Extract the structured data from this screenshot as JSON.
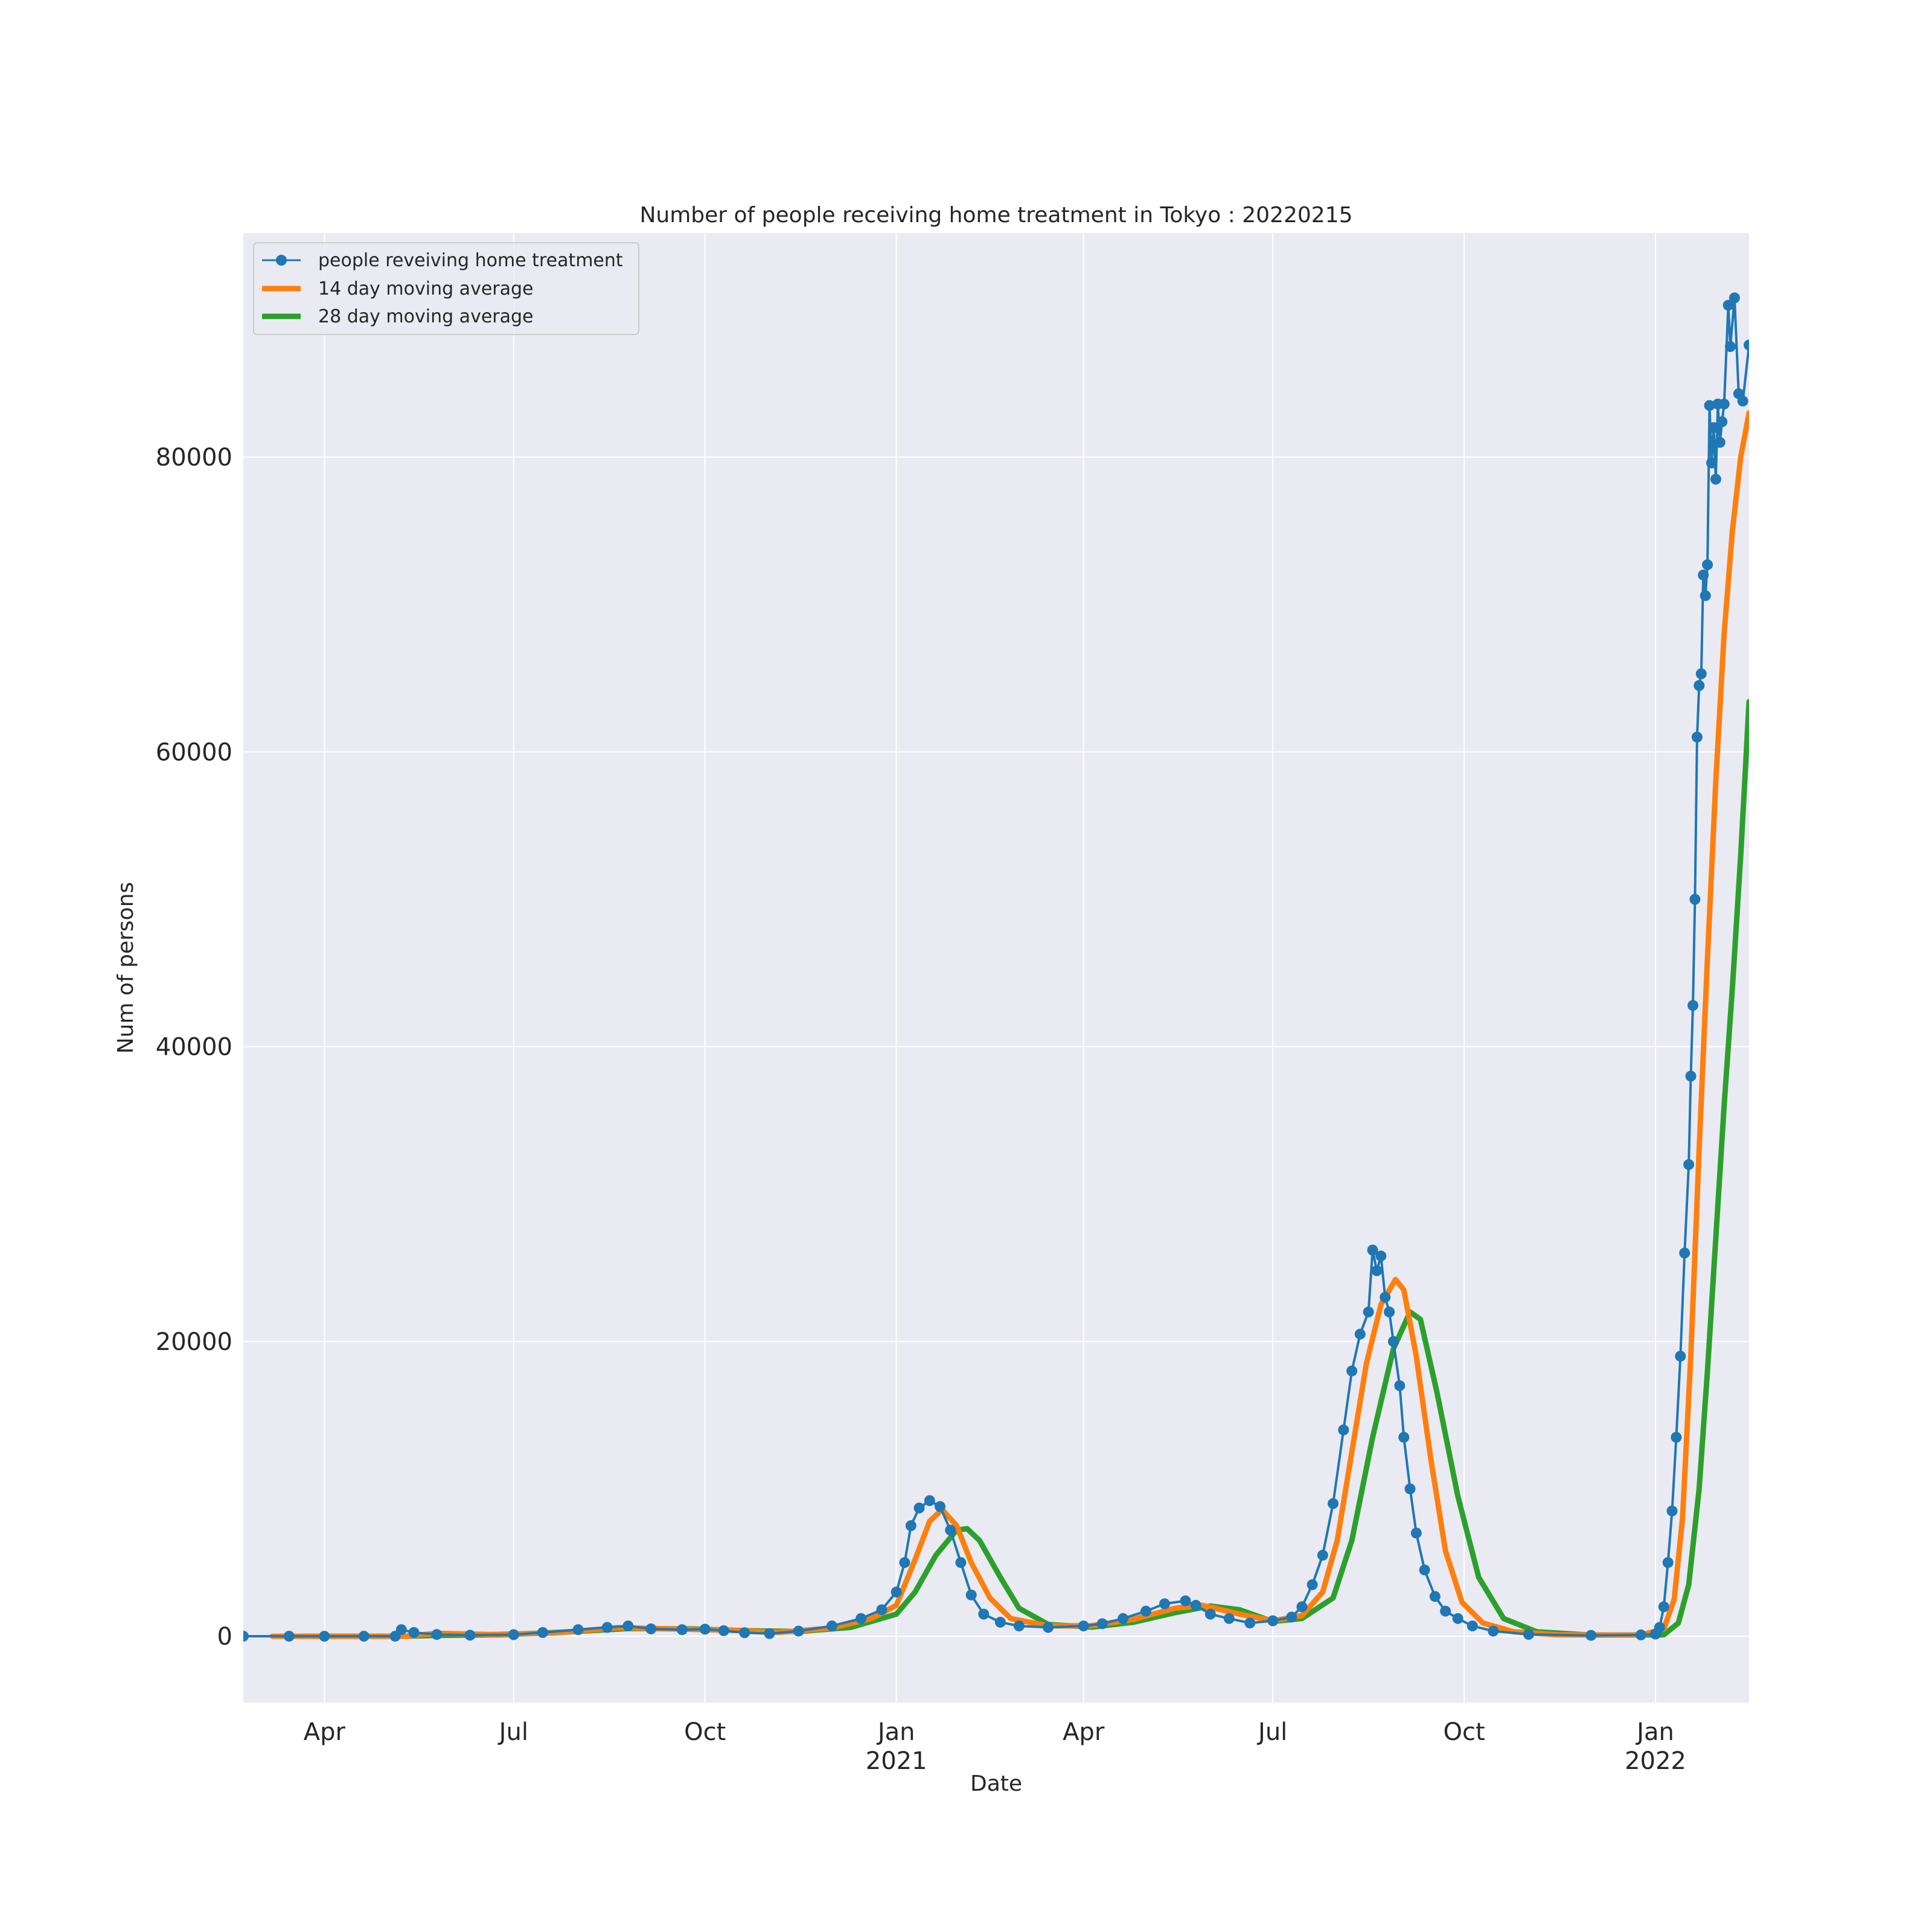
{
  "chart_data": {
    "type": "line",
    "title": "Number of people receiving home treatment in Tokyo : 20220215",
    "xlabel": "Date",
    "ylabel": "Num of persons",
    "x_type": "date",
    "xlim": [
      "2020-02-22",
      "2022-02-15"
    ],
    "ylim": [
      -4500,
      95200
    ],
    "grid": true,
    "legend_position": "top-left",
    "x_ticks": [
      {
        "date": "2020-04-01",
        "label": "Apr",
        "sublabel": ""
      },
      {
        "date": "2020-07-01",
        "label": "Jul",
        "sublabel": ""
      },
      {
        "date": "2020-10-01",
        "label": "Oct",
        "sublabel": ""
      },
      {
        "date": "2021-01-01",
        "label": "Jan",
        "sublabel": "2021"
      },
      {
        "date": "2021-04-01",
        "label": "Apr",
        "sublabel": ""
      },
      {
        "date": "2021-07-01",
        "label": "Jul",
        "sublabel": ""
      },
      {
        "date": "2021-10-01",
        "label": "Oct",
        "sublabel": ""
      },
      {
        "date": "2022-01-01",
        "label": "Jan",
        "sublabel": "2022"
      }
    ],
    "y_ticks": [
      0,
      20000,
      40000,
      60000,
      80000
    ],
    "y_tick_labels": [
      "0",
      "20000",
      "40000",
      "60000",
      "80000"
    ],
    "series": [
      {
        "name": "people reveiving home treatment",
        "color": "#1f77b4",
        "style": "line-markers",
        "points": [
          [
            "2020-02-22",
            0
          ],
          [
            "2020-03-15",
            0
          ],
          [
            "2020-04-01",
            0
          ],
          [
            "2020-04-20",
            0
          ],
          [
            "2020-05-05",
            0
          ],
          [
            "2020-05-08",
            450
          ],
          [
            "2020-05-14",
            250
          ],
          [
            "2020-05-25",
            120
          ],
          [
            "2020-06-10",
            70
          ],
          [
            "2020-07-01",
            110
          ],
          [
            "2020-07-15",
            250
          ],
          [
            "2020-08-01",
            450
          ],
          [
            "2020-08-15",
            600
          ],
          [
            "2020-08-25",
            700
          ],
          [
            "2020-09-05",
            500
          ],
          [
            "2020-09-20",
            450
          ],
          [
            "2020-10-01",
            480
          ],
          [
            "2020-10-10",
            380
          ],
          [
            "2020-10-20",
            240
          ],
          [
            "2020-11-01",
            180
          ],
          [
            "2020-11-15",
            350
          ],
          [
            "2020-12-01",
            700
          ],
          [
            "2020-12-15",
            1200
          ],
          [
            "2020-12-25",
            1800
          ],
          [
            "2021-01-01",
            3000
          ],
          [
            "2021-01-05",
            5000
          ],
          [
            "2021-01-08",
            7500
          ],
          [
            "2021-01-12",
            8700
          ],
          [
            "2021-01-17",
            9200
          ],
          [
            "2021-01-22",
            8800
          ],
          [
            "2021-01-27",
            7200
          ],
          [
            "2021-02-01",
            5000
          ],
          [
            "2021-02-06",
            2800
          ],
          [
            "2021-02-12",
            1500
          ],
          [
            "2021-02-20",
            950
          ],
          [
            "2021-03-01",
            700
          ],
          [
            "2021-03-15",
            600
          ],
          [
            "2021-04-01",
            700
          ],
          [
            "2021-04-10",
            850
          ],
          [
            "2021-04-20",
            1200
          ],
          [
            "2021-05-01",
            1700
          ],
          [
            "2021-05-10",
            2200
          ],
          [
            "2021-05-20",
            2400
          ],
          [
            "2021-05-25",
            2100
          ],
          [
            "2021-06-01",
            1500
          ],
          [
            "2021-06-10",
            1200
          ],
          [
            "2021-06-20",
            900
          ],
          [
            "2021-07-01",
            1050
          ],
          [
            "2021-07-10",
            1300
          ],
          [
            "2021-07-15",
            2000
          ],
          [
            "2021-07-20",
            3500
          ],
          [
            "2021-07-25",
            5500
          ],
          [
            "2021-07-30",
            9000
          ],
          [
            "2021-08-04",
            14000
          ],
          [
            "2021-08-08",
            18000
          ],
          [
            "2021-08-12",
            20500
          ],
          [
            "2021-08-16",
            22000
          ],
          [
            "2021-08-18",
            26200
          ],
          [
            "2021-08-20",
            24800
          ],
          [
            "2021-08-22",
            25800
          ],
          [
            "2021-08-24",
            23000
          ],
          [
            "2021-08-26",
            22000
          ],
          [
            "2021-08-28",
            20000
          ],
          [
            "2021-08-31",
            17000
          ],
          [
            "2021-09-02",
            13500
          ],
          [
            "2021-09-05",
            10000
          ],
          [
            "2021-09-08",
            7000
          ],
          [
            "2021-09-12",
            4500
          ],
          [
            "2021-09-17",
            2700
          ],
          [
            "2021-09-22",
            1700
          ],
          [
            "2021-09-28",
            1200
          ],
          [
            "2021-10-05",
            700
          ],
          [
            "2021-10-15",
            350
          ],
          [
            "2021-11-01",
            130
          ],
          [
            "2021-12-01",
            60
          ],
          [
            "2021-12-25",
            90
          ],
          [
            "2022-01-01",
            150
          ],
          [
            "2022-01-03",
            600
          ],
          [
            "2022-01-05",
            2000
          ],
          [
            "2022-01-07",
            5000
          ],
          [
            "2022-01-09",
            8500
          ],
          [
            "2022-01-11",
            13500
          ],
          [
            "2022-01-13",
            19000
          ],
          [
            "2022-01-15",
            26000
          ],
          [
            "2022-01-17",
            32000
          ],
          [
            "2022-01-18",
            38000
          ],
          [
            "2022-01-19",
            42800
          ],
          [
            "2022-01-20",
            50000
          ],
          [
            "2022-01-21",
            61000
          ],
          [
            "2022-01-22",
            64500
          ],
          [
            "2022-01-23",
            65300
          ],
          [
            "2022-01-24",
            72000
          ],
          [
            "2022-01-25",
            70600
          ],
          [
            "2022-01-26",
            72700
          ],
          [
            "2022-01-27",
            83500
          ],
          [
            "2022-01-28",
            79600
          ],
          [
            "2022-01-29",
            82000
          ],
          [
            "2022-01-30",
            78500
          ],
          [
            "2022-01-31",
            83600
          ],
          [
            "2022-02-01",
            81000
          ],
          [
            "2022-02-02",
            82400
          ],
          [
            "2022-02-03",
            83600
          ],
          [
            "2022-02-05",
            90300
          ],
          [
            "2022-02-06",
            87500
          ],
          [
            "2022-02-08",
            90800
          ],
          [
            "2022-02-10",
            84300
          ],
          [
            "2022-02-12",
            83800
          ],
          [
            "2022-02-15",
            87600
          ]
        ]
      },
      {
        "name": "14 day moving average",
        "color": "#ff7f0e",
        "style": "line",
        "points": [
          [
            "2020-03-07",
            0
          ],
          [
            "2020-05-10",
            0
          ],
          [
            "2020-05-25",
            200
          ],
          [
            "2020-06-20",
            120
          ],
          [
            "2020-07-20",
            220
          ],
          [
            "2020-08-20",
            580
          ],
          [
            "2020-09-25",
            470
          ],
          [
            "2020-10-15",
            400
          ],
          [
            "2020-11-05",
            260
          ],
          [
            "2020-12-01",
            560
          ],
          [
            "2020-12-20",
            1200
          ],
          [
            "2021-01-01",
            2100
          ],
          [
            "2021-01-10",
            5200
          ],
          [
            "2021-01-17",
            7800
          ],
          [
            "2021-01-23",
            8600
          ],
          [
            "2021-01-30",
            7500
          ],
          [
            "2021-02-06",
            5000
          ],
          [
            "2021-02-15",
            2600
          ],
          [
            "2021-02-25",
            1200
          ],
          [
            "2021-03-15",
            700
          ],
          [
            "2021-04-05",
            720
          ],
          [
            "2021-04-25",
            1150
          ],
          [
            "2021-05-15",
            1900
          ],
          [
            "2021-05-28",
            2100
          ],
          [
            "2021-06-15",
            1500
          ],
          [
            "2021-07-01",
            1050
          ],
          [
            "2021-07-15",
            1400
          ],
          [
            "2021-07-25",
            3000
          ],
          [
            "2021-08-01",
            6500
          ],
          [
            "2021-08-08",
            12500
          ],
          [
            "2021-08-15",
            18500
          ],
          [
            "2021-08-22",
            22500
          ],
          [
            "2021-08-29",
            24200
          ],
          [
            "2021-09-02",
            23500
          ],
          [
            "2021-09-08",
            19000
          ],
          [
            "2021-09-15",
            12000
          ],
          [
            "2021-09-22",
            5800
          ],
          [
            "2021-09-30",
            2300
          ],
          [
            "2021-10-10",
            900
          ],
          [
            "2021-10-25",
            300
          ],
          [
            "2021-11-15",
            100
          ],
          [
            "2021-12-25",
            80
          ],
          [
            "2022-01-05",
            500
          ],
          [
            "2022-01-10",
            2500
          ],
          [
            "2022-01-14",
            8000
          ],
          [
            "2022-01-18",
            19000
          ],
          [
            "2022-01-22",
            33000
          ],
          [
            "2022-01-26",
            46000
          ],
          [
            "2022-01-30",
            58000
          ],
          [
            "2022-02-03",
            68000
          ],
          [
            "2022-02-07",
            75000
          ],
          [
            "2022-02-11",
            80000
          ],
          [
            "2022-02-15",
            83000
          ]
        ]
      },
      {
        "name": "28 day moving average",
        "color": "#2ca02c",
        "style": "line",
        "points": [
          [
            "2020-03-21",
            0
          ],
          [
            "2020-05-10",
            0
          ],
          [
            "2020-05-25",
            60
          ],
          [
            "2020-06-25",
            100
          ],
          [
            "2020-07-25",
            280
          ],
          [
            "2020-08-25",
            520
          ],
          [
            "2020-09-25",
            500
          ],
          [
            "2020-10-20",
            380
          ],
          [
            "2020-11-15",
            320
          ],
          [
            "2020-12-10",
            600
          ],
          [
            "2021-01-01",
            1500
          ],
          [
            "2021-01-10",
            3000
          ],
          [
            "2021-01-20",
            5500
          ],
          [
            "2021-01-30",
            7200
          ],
          [
            "2021-02-04",
            7300
          ],
          [
            "2021-02-10",
            6500
          ],
          [
            "2021-02-20",
            4000
          ],
          [
            "2021-03-01",
            1900
          ],
          [
            "2021-03-15",
            800
          ],
          [
            "2021-04-05",
            620
          ],
          [
            "2021-04-25",
            950
          ],
          [
            "2021-05-15",
            1600
          ],
          [
            "2021-06-01",
            2050
          ],
          [
            "2021-06-15",
            1800
          ],
          [
            "2021-07-01",
            1000
          ],
          [
            "2021-07-15",
            1200
          ],
          [
            "2021-07-30",
            2600
          ],
          [
            "2021-08-08",
            6500
          ],
          [
            "2021-08-18",
            13500
          ],
          [
            "2021-08-28",
            19500
          ],
          [
            "2021-09-05",
            22000
          ],
          [
            "2021-09-10",
            21500
          ],
          [
            "2021-09-18",
            16500
          ],
          [
            "2021-09-28",
            9500
          ],
          [
            "2021-10-08",
            4000
          ],
          [
            "2021-10-20",
            1200
          ],
          [
            "2021-11-05",
            300
          ],
          [
            "2021-12-01",
            80
          ],
          [
            "2022-01-05",
            100
          ],
          [
            "2022-01-12",
            900
          ],
          [
            "2022-01-17",
            3500
          ],
          [
            "2022-01-22",
            10000
          ],
          [
            "2022-01-26",
            18000
          ],
          [
            "2022-01-30",
            27000
          ],
          [
            "2022-02-03",
            36000
          ],
          [
            "2022-02-07",
            44000
          ],
          [
            "2022-02-11",
            53000
          ],
          [
            "2022-02-15",
            63400
          ]
        ]
      }
    ]
  }
}
